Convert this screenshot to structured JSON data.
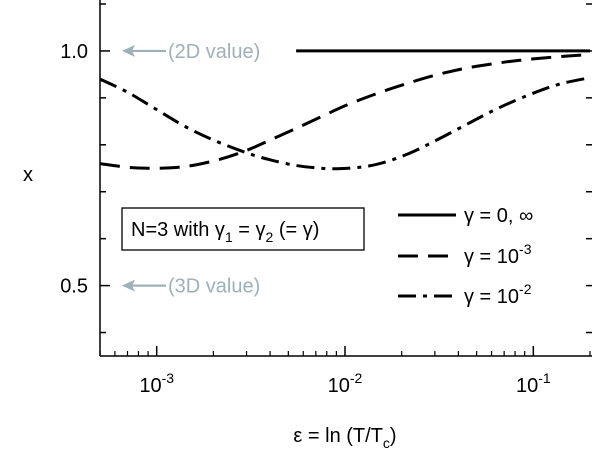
{
  "chart_data": {
    "type": "line",
    "xlabel": {
      "pre": "ε = ln (T/T",
      "sub": "c",
      "post": ")"
    },
    "ylabel": "x",
    "x_scale": "log",
    "xlim": [
      0.0005,
      0.2
    ],
    "ylim": [
      0.35,
      1.1
    ],
    "x_ticks": [
      {
        "value": 0.001,
        "base": "10",
        "exp": "-3"
      },
      {
        "value": 0.01,
        "base": "10",
        "exp": "-2"
      },
      {
        "value": 0.1,
        "base": "10",
        "exp": "-1"
      }
    ],
    "y_ticks": [
      {
        "value": 0.5,
        "label": "0.5"
      },
      {
        "value": 1.0,
        "label": "1.0"
      }
    ],
    "annotations": [
      {
        "text": "(2D value)",
        "y": 1.0
      },
      {
        "text": "(3D value)",
        "y": 0.5
      }
    ],
    "note_box": {
      "text": "N=3 with γ",
      "sub1": "1",
      "mid": " = γ",
      "sub2": "2",
      "post": " (= γ)"
    },
    "series": [
      {
        "name": "γ = 0, ∞",
        "legend": {
          "pre": "γ = 0, ∞",
          "exp": ""
        },
        "style": "solid",
        "x": [
          0.0055,
          0.2
        ],
        "y": [
          1.0,
          1.0
        ]
      },
      {
        "name": "γ = 10^-3",
        "legend": {
          "pre": "γ = 10",
          "exp": "-3"
        },
        "style": "dashed",
        "x": [
          0.0005,
          0.0007,
          0.0009,
          0.0012,
          0.0016,
          0.0022,
          0.003,
          0.004,
          0.0055,
          0.0075,
          0.01,
          0.014,
          0.02,
          0.03,
          0.045,
          0.07,
          0.1,
          0.15,
          0.2
        ],
        "y": [
          0.76,
          0.752,
          0.75,
          0.751,
          0.757,
          0.77,
          0.788,
          0.81,
          0.835,
          0.86,
          0.883,
          0.906,
          0.927,
          0.948,
          0.964,
          0.976,
          0.983,
          0.989,
          0.992
        ]
      },
      {
        "name": "γ = 10^-2",
        "legend": {
          "pre": "γ = 10",
          "exp": "-2"
        },
        "style": "dashdot",
        "x": [
          0.0005,
          0.0007,
          0.001,
          0.0014,
          0.002,
          0.003,
          0.004,
          0.0055,
          0.0075,
          0.009,
          0.012,
          0.016,
          0.022,
          0.03,
          0.045,
          0.065,
          0.1,
          0.14,
          0.2
        ],
        "y": [
          0.94,
          0.912,
          0.875,
          0.84,
          0.81,
          0.783,
          0.768,
          0.756,
          0.75,
          0.749,
          0.752,
          0.762,
          0.782,
          0.808,
          0.845,
          0.878,
          0.91,
          0.93,
          0.943
        ]
      }
    ]
  }
}
